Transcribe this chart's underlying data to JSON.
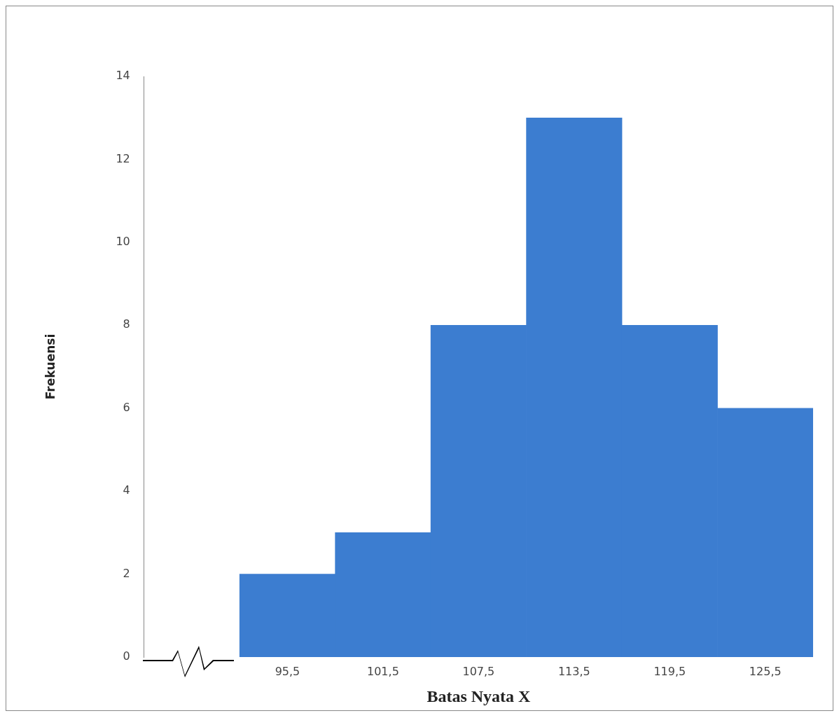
{
  "chart_data": {
    "type": "bar",
    "xlabel": "Batas Nyata X",
    "ylabel": "Frekuensi",
    "categories": [
      null,
      "95,5",
      "101,5",
      "107,5",
      "113,5",
      "119,5",
      "125,5"
    ],
    "values": [
      null,
      2,
      3,
      8,
      13,
      8,
      6
    ],
    "color": "#3c7dd0",
    "ylim": [
      0,
      14
    ],
    "yticks": [
      0,
      2,
      4,
      6,
      8,
      10,
      12,
      14
    ],
    "grid": false,
    "legend": false
  }
}
